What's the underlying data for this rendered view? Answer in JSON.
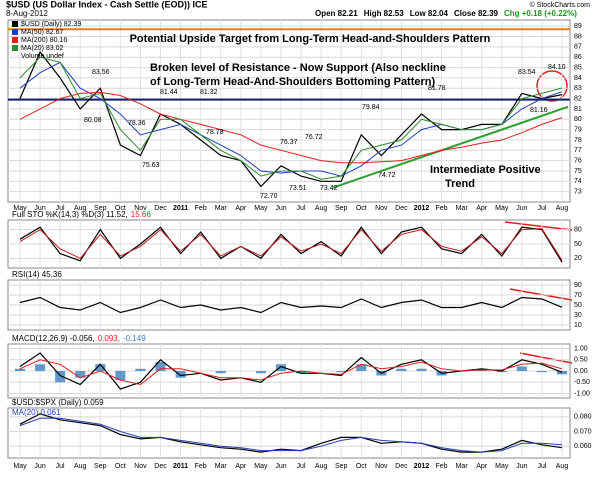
{
  "chart_data": [
    {
      "type": "line",
      "title": "$USD (US Dollar Index - Cash Settle (EOD)) ICE",
      "date": "8-Aug-2012",
      "quote": [
        "Open 82.21",
        "High 82.53",
        "Low 82.04",
        "Close 82.39"
      ],
      "change": "Chg +0.18 (+0.22%)",
      "credit": "© StockCharts.com",
      "categories": [
        "May",
        "Jun",
        "Jul",
        "Aug",
        "Sep",
        "Oct",
        "Nov",
        "Dec",
        "2011",
        "Feb",
        "Mar",
        "Apr",
        "May",
        "Jun",
        "Jul",
        "Aug",
        "Sep",
        "Oct",
        "Nov",
        "Dec",
        "2012",
        "Feb",
        "Mar",
        "Apr",
        "May",
        "Jun",
        "Jul",
        "Aug"
      ],
      "ylim": [
        72,
        89.6
      ],
      "yticks": [
        73,
        74,
        75,
        76,
        77,
        78,
        79,
        80,
        81,
        82,
        83,
        84,
        85,
        86,
        87,
        88,
        89
      ],
      "grid": true,
      "series": [
        {
          "name": "$USD (Daily) 82.39",
          "color": "#000000",
          "values": [
            82,
            86.5,
            84,
            81,
            83,
            77.5,
            76.5,
            80.5,
            79.5,
            78,
            76.5,
            76,
            73.5,
            75.5,
            74.5,
            74,
            74,
            78.5,
            76.5,
            78.5,
            80.5,
            79,
            79,
            79.5,
            79.5,
            82.5,
            82,
            82.39
          ]
        },
        {
          "name": "MA(50) 82.67",
          "color": "#1f3fbf",
          "values": [
            83,
            84.5,
            85.5,
            83,
            82,
            80.5,
            78.5,
            79,
            79.5,
            78.5,
            77.5,
            76.5,
            75,
            74.8,
            75,
            75,
            74.5,
            75.5,
            77,
            77.5,
            79,
            79.5,
            79,
            79,
            79.5,
            81,
            82,
            82.67
          ]
        },
        {
          "name": "MA(200) 80.16",
          "color": "#e02020",
          "values": [
            80,
            81,
            82,
            82.5,
            82.6,
            82.3,
            81.5,
            80.5,
            80,
            79.5,
            79,
            78.5,
            77.5,
            77,
            76.5,
            76,
            75.8,
            75.8,
            75.9,
            76,
            76.5,
            77,
            77.3,
            77.7,
            78,
            78.7,
            79.5,
            80.16
          ]
        },
        {
          "name": "MA(20) 83.02",
          "color": "#2e8b2e",
          "values": [
            84,
            86,
            85.5,
            82,
            82.5,
            79,
            77,
            80,
            80,
            78.5,
            77,
            76,
            74.5,
            75,
            75,
            74.2,
            74.5,
            77,
            77.5,
            78,
            80,
            79.5,
            79,
            79,
            79.5,
            82,
            82.5,
            83.02
          ]
        }
      ],
      "legend_extra": "Volume undef",
      "reference_lines": [
        {
          "value": 88.7,
          "color": "#f07a1a",
          "label": "Potential Upside Target from Long-Term Head-and-Shoulders Pattern"
        },
        {
          "value": 81.9,
          "color": "#14206e"
        }
      ],
      "annotations": [
        "Broken level of Resistance - Now Support (Also neckline",
        "of Long-Term Head-And-Shoulders Bottoming Pattern)",
        "Intermediate Positive",
        "Trend"
      ],
      "trendline": {
        "start": 73.4,
        "end": 81.2,
        "color": "#2e9e2e"
      },
      "point_labels": [
        "83.56",
        "80.08",
        "78.36",
        "75.63",
        "81.44",
        "81.32",
        "78.78",
        "76.37",
        "76.72",
        "72.70",
        "73.51",
        "73.42",
        "79.84",
        "74.72",
        "81.78",
        "83.54",
        "84.10",
        "81.16"
      ]
    },
    {
      "type": "line",
      "label": [
        {
          "text": "Full STO %K(14,3) %D(3) 11.52,",
          "color": "#000000"
        },
        {
          "text": "15.66",
          "color": "#e02020"
        }
      ],
      "ylim": [
        0,
        100
      ],
      "yticks": [
        20,
        50,
        80
      ],
      "grid": true,
      "series": [
        {
          "color": "#000000",
          "values": [
            60,
            85,
            30,
            15,
            80,
            20,
            50,
            85,
            30,
            75,
            20,
            45,
            20,
            70,
            30,
            55,
            25,
            85,
            30,
            75,
            85,
            40,
            30,
            70,
            25,
            85,
            80,
            12
          ]
        },
        {
          "color": "#c02020",
          "values": [
            55,
            80,
            40,
            20,
            70,
            25,
            45,
            80,
            35,
            70,
            25,
            45,
            25,
            65,
            35,
            50,
            30,
            80,
            35,
            70,
            80,
            45,
            35,
            65,
            30,
            80,
            82,
            16
          ]
        }
      ]
    },
    {
      "type": "line",
      "label": [
        {
          "text": "RSI(14) 45.36",
          "color": "#000000"
        }
      ],
      "ylim": [
        0,
        100
      ],
      "yticks": [
        10,
        30,
        50,
        70,
        90
      ],
      "grid": true,
      "series": [
        {
          "color": "#000000",
          "values": [
            55,
            65,
            45,
            40,
            55,
            35,
            45,
            60,
            45,
            50,
            40,
            45,
            35,
            55,
            45,
            48,
            45,
            62,
            45,
            55,
            60,
            45,
            45,
            55,
            45,
            65,
            62,
            45.36
          ]
        }
      ]
    },
    {
      "type": "line",
      "label": [
        {
          "text": "MACD(12,26,9) -0.056,",
          "color": "#000000"
        },
        {
          "text": "0.093,",
          "color": "#e02020"
        },
        {
          "text": "-0.149",
          "color": "#3a7fc0"
        }
      ],
      "ylim": [
        -1.2,
        1.2
      ],
      "yticks": [
        {
          "value": 1,
          "label": "1.00"
        },
        {
          "value": 0.5,
          "label": "0.50"
        },
        {
          "value": 0,
          "label": "0.00"
        },
        {
          "value": -0.5,
          "label": "-0.50"
        },
        {
          "value": -1,
          "label": "-1.00"
        }
      ],
      "grid": true,
      "histogram": {
        "color": "#3a7fc0",
        "values": [
          0.1,
          0.3,
          -0.5,
          -0.3,
          0.3,
          -0.4,
          0.1,
          0.4,
          -0.3,
          0,
          -0.1,
          0,
          -0.1,
          0.3,
          -0.1,
          0,
          -0.05,
          0.3,
          -0.2,
          0.1,
          0.1,
          -0.2,
          0,
          0.05,
          -0.05,
          0.2,
          -0.05,
          -0.149
        ]
      },
      "series": [
        {
          "color": "#000000",
          "values": [
            0.2,
            0.8,
            -0.2,
            -0.6,
            0.3,
            -0.8,
            -0.5,
            0.5,
            -0.2,
            -0.1,
            -0.4,
            -0.3,
            -0.5,
            0.2,
            -0.1,
            -0.1,
            -0.2,
            0.6,
            -0.1,
            0.3,
            0.5,
            -0.1,
            0,
            0.1,
            0,
            0.5,
            0.3,
            -0.056
          ]
        },
        {
          "color": "#e02020",
          "values": [
            0.1,
            0.5,
            0.3,
            -0.3,
            0,
            -0.4,
            -0.6,
            0.1,
            0.1,
            -0.1,
            -0.3,
            -0.3,
            -0.4,
            -0.1,
            0,
            -0.1,
            -0.15,
            0.3,
            0.1,
            0.2,
            0.4,
            0.1,
            0,
            0.05,
            0.05,
            0.3,
            0.35,
            0.093
          ]
        }
      ]
    },
    {
      "type": "line",
      "label": [
        {
          "text": "$USD:$SPX (Daily) 0.059",
          "color": "#000000"
        }
      ],
      "label2": [
        {
          "text": "MA(20) 0.061",
          "color": "#1f3fbf"
        }
      ],
      "ylim": [
        0.052,
        0.086
      ],
      "yticks": [
        {
          "value": 0.08,
          "label": "0.080"
        },
        {
          "value": 0.07,
          "label": "0.070"
        },
        {
          "value": 0.06,
          "label": "0.060"
        }
      ],
      "grid": true,
      "series": [
        {
          "color": "#000000",
          "values": [
            0.075,
            0.082,
            0.078,
            0.076,
            0.074,
            0.068,
            0.065,
            0.066,
            0.063,
            0.061,
            0.059,
            0.058,
            0.056,
            0.058,
            0.057,
            0.062,
            0.066,
            0.066,
            0.062,
            0.063,
            0.062,
            0.058,
            0.056,
            0.056,
            0.058,
            0.064,
            0.061,
            0.059
          ]
        },
        {
          "color": "#1f3fbf",
          "values": [
            0.074,
            0.079,
            0.079,
            0.077,
            0.075,
            0.07,
            0.066,
            0.066,
            0.064,
            0.062,
            0.06,
            0.059,
            0.057,
            0.057,
            0.057,
            0.06,
            0.064,
            0.066,
            0.064,
            0.063,
            0.062,
            0.059,
            0.057,
            0.056,
            0.057,
            0.062,
            0.062,
            0.061
          ]
        }
      ]
    }
  ]
}
